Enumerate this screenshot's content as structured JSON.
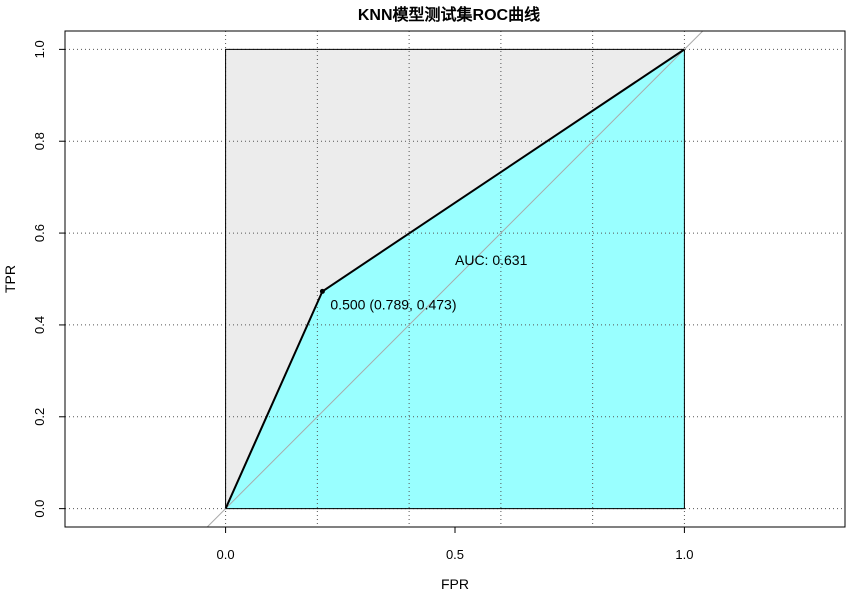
{
  "chart_data": {
    "type": "line",
    "title": "KNN模型测试集ROC曲线",
    "xlabel": "FPR",
    "ylabel": "TPR",
    "xlim": [
      -0.35,
      1.35
    ],
    "ylim": [
      -0.04,
      1.04
    ],
    "x_ticks": [
      0.0,
      0.5,
      1.0
    ],
    "x_tick_labels": [
      "0.0",
      "0.5",
      "1.0"
    ],
    "y_ticks": [
      0.0,
      0.2,
      0.4,
      0.6,
      0.8,
      1.0
    ],
    "y_tick_labels": [
      "0.0",
      "0.2",
      "0.4",
      "0.6",
      "0.8",
      "1.0"
    ],
    "x_grid": [
      0.0,
      0.2,
      0.4,
      0.6,
      0.8,
      1.0
    ],
    "y_grid": [
      0.0,
      0.2,
      0.4,
      0.6,
      0.8,
      1.0
    ],
    "grid": true,
    "grid_style": "dotted",
    "series": [
      {
        "x": [
          0.0,
          0.211,
          1.0
        ],
        "y": [
          0.0,
          0.473,
          1.0
        ]
      }
    ],
    "threshold_point": {
      "x": 0.211,
      "y": 0.473,
      "label": "0.500 (0.789, 0.473)"
    },
    "auc_label": "AUC: 0.631",
    "auc_fill_color": "#99ffff",
    "background_square_color": "#ececec",
    "diagonal_color": "#aaaaaa"
  }
}
